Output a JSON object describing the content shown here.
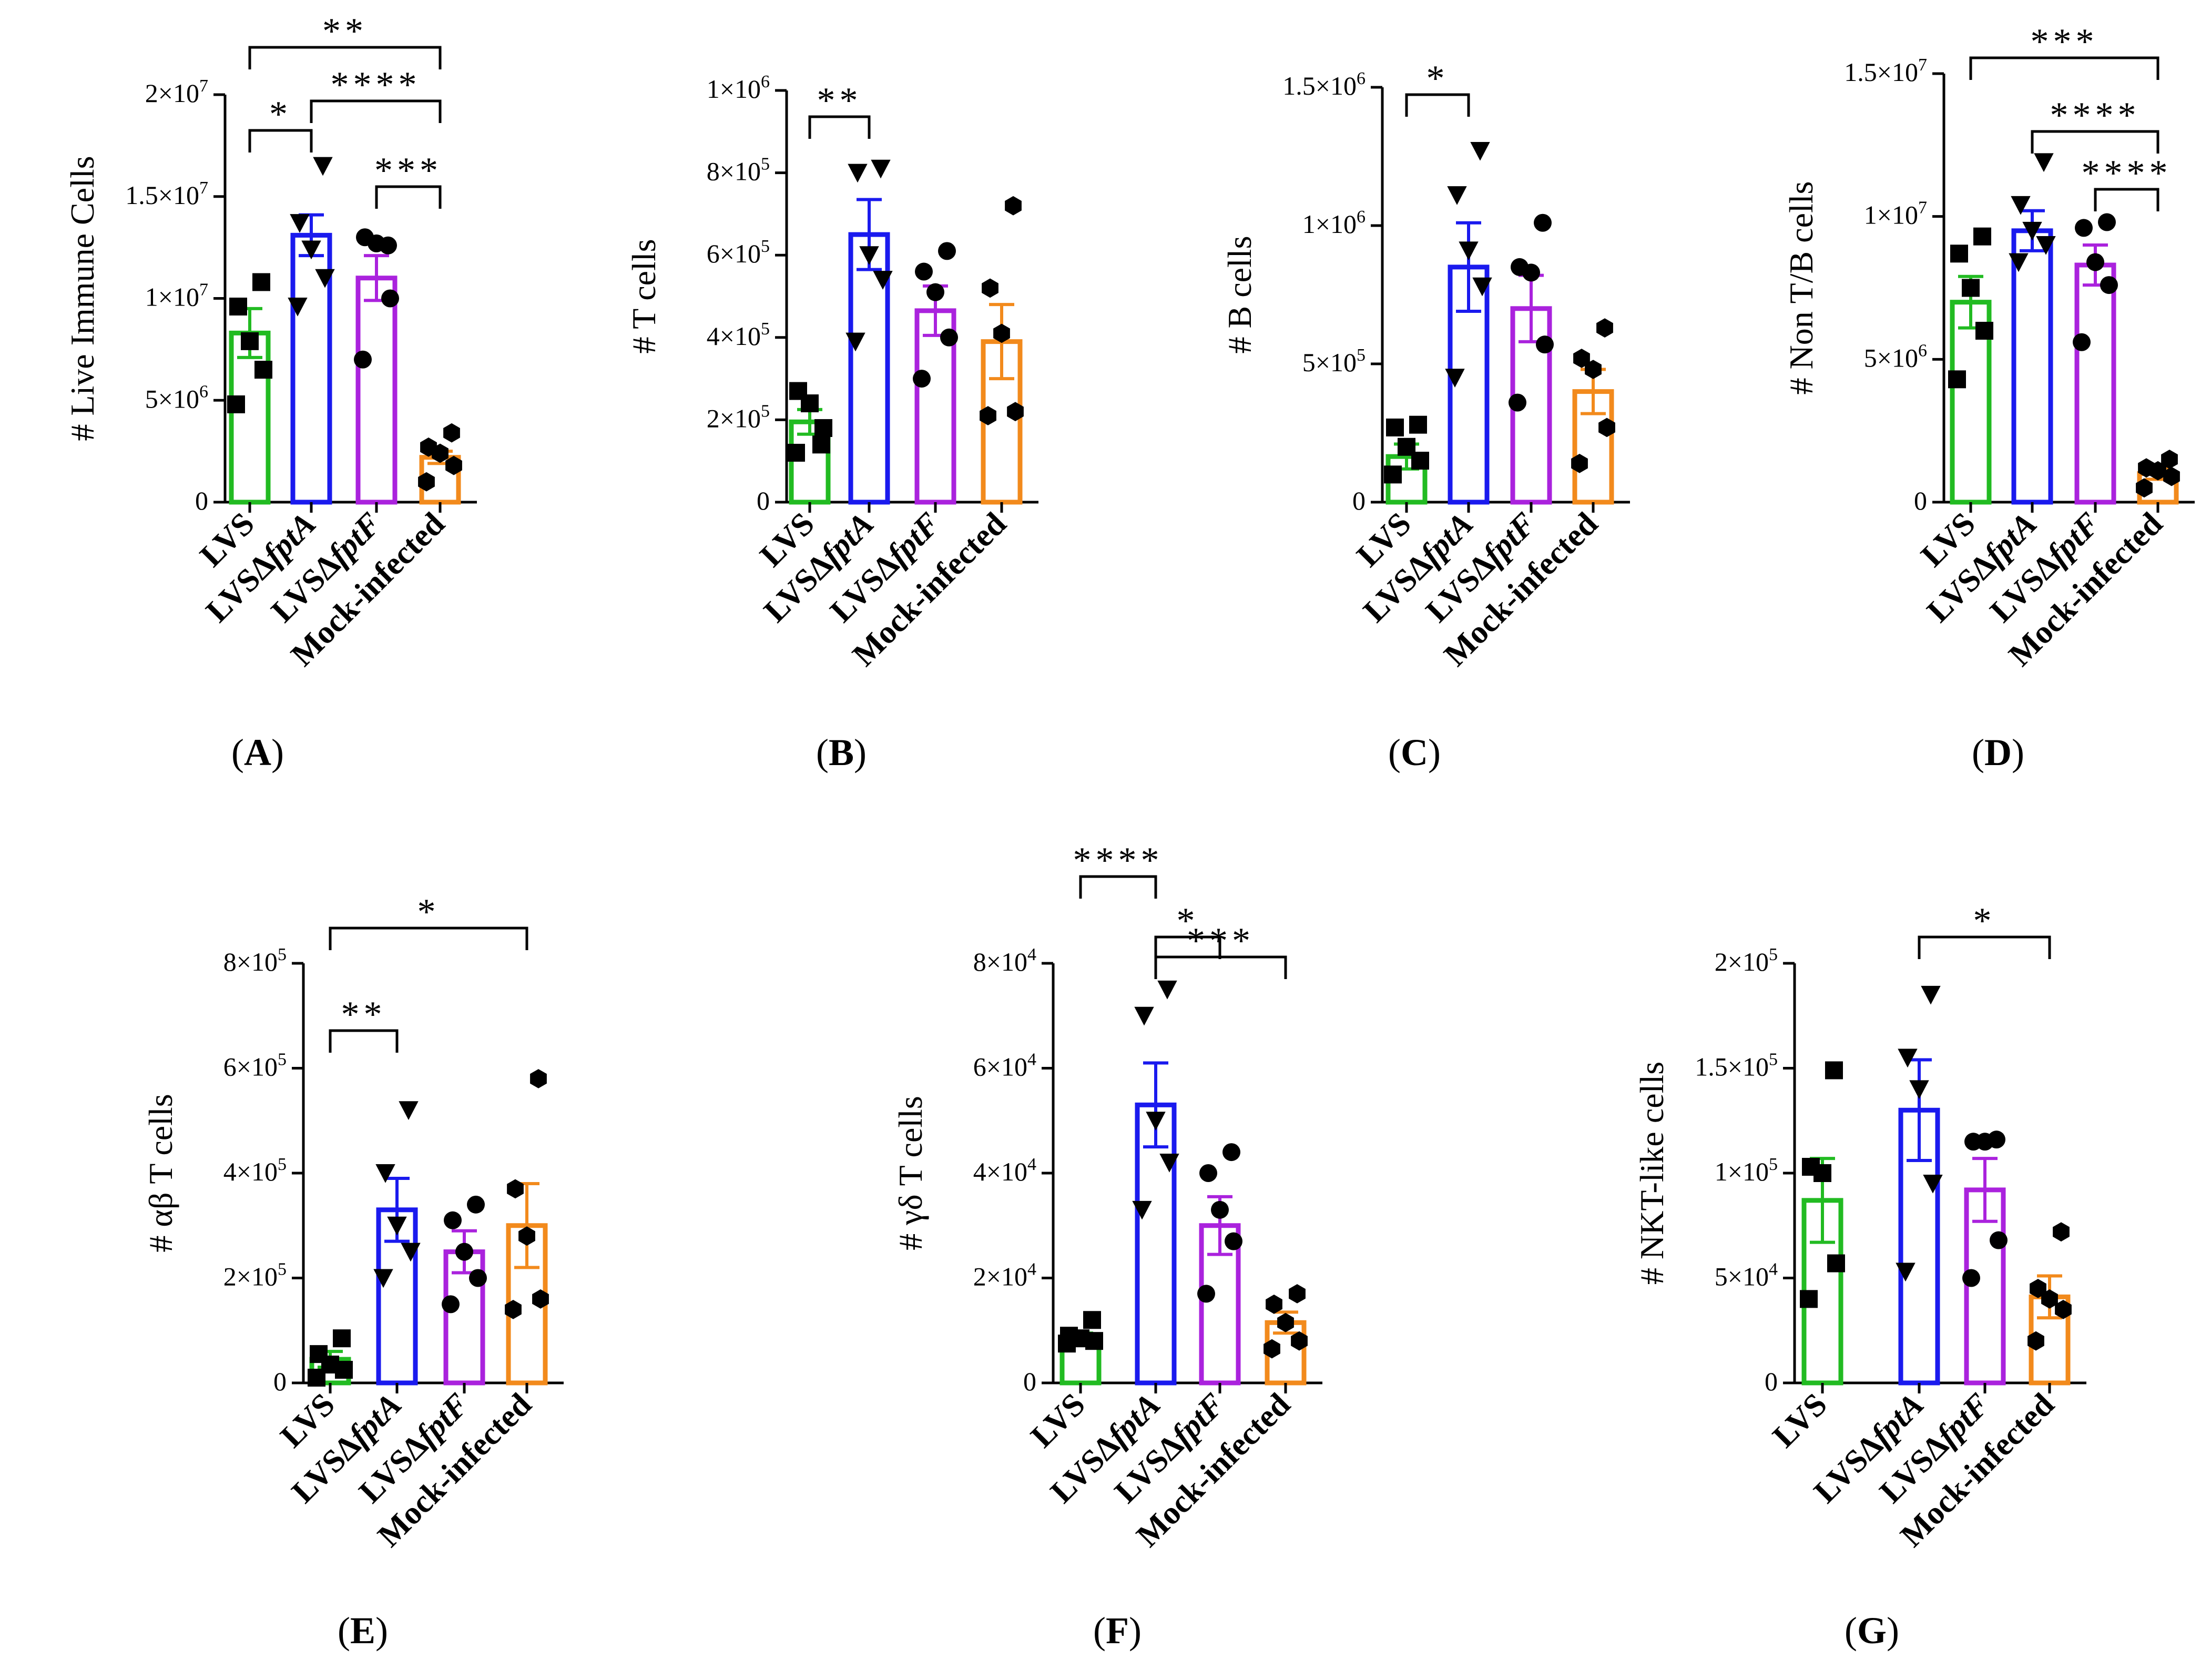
{
  "figure": {
    "colors": {
      "LVS": "#22bb22",
      "LVSdfptA": "#1a1aee",
      "LVSdfptF": "#aa22dd",
      "Mock": "#f28a1c",
      "ink": "#000000"
    },
    "marker_symbols": [
      "square",
      "triangle-down",
      "circle",
      "hexagon"
    ],
    "x_labels": [
      [
        {
          "t": "LVS",
          "i": false
        }
      ],
      [
        {
          "t": "LVSΔ",
          "i": false
        },
        {
          "t": "fptA",
          "i": true
        }
      ],
      [
        {
          "t": "LVSΔ",
          "i": false
        },
        {
          "t": "fptF",
          "i": true
        }
      ],
      [
        {
          "t": "Mock-infected",
          "i": false
        }
      ]
    ]
  },
  "chart_data": [
    {
      "type": "bar",
      "panel_label": "(A)",
      "ylabel": "# Live Immune Cells",
      "categories": [
        "LVS",
        "LVSΔfptA",
        "LVSΔfptF",
        "Mock-infected"
      ],
      "ylim": [
        0,
        20000000
      ],
      "yticks": [
        0,
        5000000,
        10000000,
        15000000,
        20000000
      ],
      "ytick_labels": [
        [
          "0",
          ""
        ],
        [
          "5×10",
          "6"
        ],
        [
          "1×10",
          "7"
        ],
        [
          "1.5×10",
          "7"
        ],
        [
          "2×10",
          "7"
        ]
      ],
      "means": [
        8300000,
        13100000,
        11000000,
        2200000
      ],
      "sems": [
        1200000,
        1000000,
        1100000,
        300000
      ],
      "points": [
        [
          4800000,
          6500000,
          7900000,
          9600000,
          10800000
        ],
        [
          9600000,
          11000000,
          12400000,
          13700000,
          16500000
        ],
        [
          7000000,
          10000000,
          12700000,
          13000000,
          12600000
        ],
        [
          1000000,
          1800000,
          2400000,
          2700000,
          3400000
        ]
      ],
      "brackets": [
        {
          "from": 0,
          "to": 3,
          "label": "**"
        },
        {
          "from": 1,
          "to": 3,
          "label": "****"
        },
        {
          "from": 0,
          "to": 1,
          "label": "*"
        },
        {
          "from": 2,
          "to": 3,
          "label": "***"
        }
      ]
    },
    {
      "type": "bar",
      "panel_label": "(B)",
      "ylabel": "# T cells",
      "categories": [
        "LVS",
        "LVSΔfptA",
        "LVSΔfptF",
        "Mock-infected"
      ],
      "ylim": [
        0,
        1000000
      ],
      "yticks": [
        0,
        200000,
        400000,
        600000,
        800000,
        1000000
      ],
      "ytick_labels": [
        [
          "0",
          ""
        ],
        [
          "2×10",
          "5"
        ],
        [
          "4×10",
          "5"
        ],
        [
          "6×10",
          "5"
        ],
        [
          "8×10",
          "5"
        ],
        [
          "1×10",
          "6"
        ]
      ],
      "means": [
        195000,
        650000,
        465000,
        390000
      ],
      "sems": [
        30000,
        85000,
        60000,
        90000
      ],
      "points": [
        [
          120000,
          180000,
          240000,
          270000,
          140000
        ],
        [
          390000,
          540000,
          600000,
          800000,
          810000
        ],
        [
          300000,
          400000,
          510000,
          560000,
          610000
        ],
        [
          210000,
          220000,
          410000,
          520000,
          720000
        ]
      ],
      "brackets": [
        {
          "from": 0,
          "to": 1,
          "label": "**"
        }
      ]
    },
    {
      "type": "bar",
      "panel_label": "(C)",
      "ylabel": "# B cells",
      "categories": [
        "LVS",
        "LVSΔfptA",
        "LVSΔfptF",
        "Mock-infected"
      ],
      "ylim": [
        0,
        1500000
      ],
      "yticks": [
        0,
        500000,
        1000000,
        1500000
      ],
      "ytick_labels": [
        [
          "0",
          ""
        ],
        [
          "5×10",
          "5"
        ],
        [
          "1×10",
          "6"
        ],
        [
          "1.5×10",
          "6"
        ]
      ],
      "means": [
        165000,
        850000,
        700000,
        400000
      ],
      "sems": [
        45000,
        160000,
        120000,
        80000
      ],
      "points": [
        [
          100000,
          150000,
          200000,
          270000,
          280000
        ],
        [
          450000,
          780000,
          910000,
          1110000,
          1270000
        ],
        [
          360000,
          570000,
          830000,
          850000,
          1010000
        ],
        [
          140000,
          270000,
          480000,
          520000,
          630000
        ]
      ],
      "brackets": [
        {
          "from": 0,
          "to": 1,
          "label": "*"
        }
      ]
    },
    {
      "type": "bar",
      "panel_label": "(D)",
      "ylabel": "# Non T/B cells",
      "categories": [
        "LVS",
        "LVSΔfptA",
        "LVSΔfptF",
        "Mock-infected"
      ],
      "ylim": [
        0,
        15000000
      ],
      "yticks": [
        0,
        5000000,
        10000000,
        15000000
      ],
      "ytick_labels": [
        [
          "0",
          ""
        ],
        [
          "5×10",
          "6"
        ],
        [
          "1×10",
          "7"
        ],
        [
          "1.5×10",
          "7"
        ]
      ],
      "means": [
        7000000,
        9500000,
        8300000,
        1000000
      ],
      "sems": [
        900000,
        700000,
        700000,
        200000
      ],
      "points": [
        [
          4300000,
          6000000,
          7500000,
          8700000,
          9300000
        ],
        [
          8400000,
          9000000,
          9500000,
          10400000,
          11900000
        ],
        [
          5600000,
          7600000,
          8400000,
          9600000,
          9800000
        ],
        [
          500000,
          900000,
          1100000,
          1200000,
          1500000
        ]
      ],
      "brackets": [
        {
          "from": 0,
          "to": 3,
          "label": "***"
        },
        {
          "from": 1,
          "to": 3,
          "label": "****"
        },
        {
          "from": 2,
          "to": 3,
          "label": "****"
        }
      ]
    },
    {
      "type": "bar",
      "panel_label": "(E)",
      "ylabel": "# αβ T cells",
      "categories": [
        "LVS",
        "LVSΔfptA",
        "LVSΔfptF",
        "Mock-infected"
      ],
      "ylim": [
        0,
        800000
      ],
      "yticks": [
        0,
        200000,
        400000,
        600000,
        800000
      ],
      "ytick_labels": [
        [
          "0",
          ""
        ],
        [
          "2×10",
          "5"
        ],
        [
          "4×10",
          "5"
        ],
        [
          "6×10",
          "5"
        ],
        [
          "8×10",
          "5"
        ]
      ],
      "means": [
        45000,
        330000,
        250000,
        300000
      ],
      "sems": [
        15000,
        60000,
        40000,
        80000
      ],
      "points": [
        [
          10000,
          25000,
          35000,
          55000,
          85000
        ],
        [
          200000,
          250000,
          300000,
          400000,
          520000
        ],
        [
          150000,
          200000,
          250000,
          310000,
          340000
        ],
        [
          140000,
          160000,
          280000,
          370000,
          580000
        ]
      ],
      "brackets": [
        {
          "from": 0,
          "to": 3,
          "label": "*"
        },
        {
          "from": 0,
          "to": 1,
          "label": "**"
        }
      ]
    },
    {
      "type": "bar",
      "panel_label": "(F)",
      "ylabel": "# γδ T cells",
      "categories": [
        "LVS",
        "LVSΔfptA",
        "LVSΔfptF",
        "Mock-infected"
      ],
      "ylim": [
        0,
        80000
      ],
      "yticks": [
        0,
        20000,
        40000,
        60000,
        80000
      ],
      "ytick_labels": [
        [
          "0",
          ""
        ],
        [
          "2×10",
          "4"
        ],
        [
          "4×10",
          "4"
        ],
        [
          "6×10",
          "4"
        ],
        [
          "8×10",
          "4"
        ]
      ],
      "means": [
        8500,
        53000,
        30000,
        11500
      ],
      "sems": [
        1000,
        8000,
        5500,
        2000
      ],
      "points": [
        [
          7500,
          8000,
          8500,
          9000,
          12000
        ],
        [
          33000,
          42000,
          50000,
          70000,
          75000
        ],
        [
          17000,
          27000,
          33000,
          40000,
          44000
        ],
        [
          6500,
          8000,
          11500,
          15000,
          17000
        ]
      ],
      "brackets": [
        {
          "from": 0,
          "to": 1,
          "label": "****"
        },
        {
          "from": 1,
          "to": 2,
          "label": "*"
        },
        {
          "from": 1,
          "to": 3,
          "label": "***"
        }
      ]
    },
    {
      "type": "bar",
      "panel_label": "(G)",
      "ylabel": "# NKT-like cells",
      "categories": [
        "LVS",
        "LVSΔfptA",
        "LVSΔfptF",
        "Mock-infected"
      ],
      "ylim": [
        0,
        200000
      ],
      "yticks": [
        0,
        50000,
        100000,
        150000,
        200000
      ],
      "ytick_labels": [
        [
          "0",
          ""
        ],
        [
          "5×10",
          "4"
        ],
        [
          "1×10",
          "5"
        ],
        [
          "1.5×10",
          "5"
        ],
        [
          "2×10",
          "5"
        ]
      ],
      "means": [
        87000,
        130000,
        92000,
        41000
      ],
      "sems": [
        20000,
        24000,
        15000,
        10000
      ],
      "points": [
        [
          40000,
          57000,
          100000,
          103000,
          149000
        ],
        [
          53000,
          95000,
          140000,
          155000,
          185000
        ],
        [
          50000,
          68000,
          115000,
          115000,
          116000
        ],
        [
          20000,
          35000,
          40000,
          45000,
          72000
        ]
      ],
      "brackets": [
        {
          "from": 1,
          "to": 3,
          "label": "*"
        }
      ]
    }
  ]
}
